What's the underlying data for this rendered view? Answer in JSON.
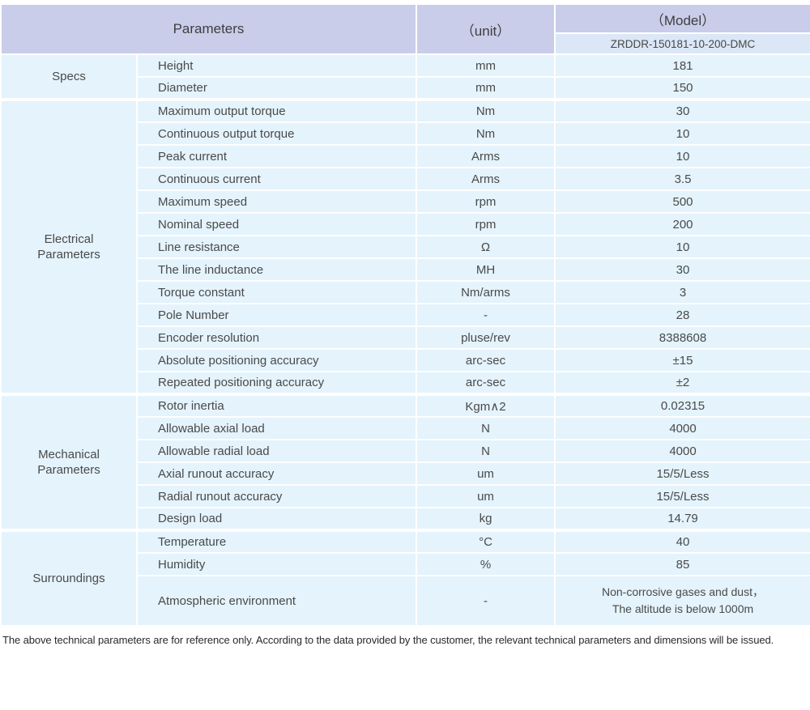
{
  "header": {
    "parameters_label": "Parameters",
    "unit_label": "（unit）",
    "model_label": "（Model）",
    "model_number": "ZRDDR-150181-10-200-DMC"
  },
  "groups": [
    {
      "label": "Specs",
      "rows": [
        {
          "param": "Height",
          "unit": "mm",
          "value": "181"
        },
        {
          "param": "Diameter",
          "unit": "mm",
          "value": "150"
        }
      ]
    },
    {
      "label": "Electrical Parameters",
      "rows": [
        {
          "param": "Maximum output torque",
          "unit": "Nm",
          "value": "30"
        },
        {
          "param": "Continuous output torque",
          "unit": "Nm",
          "value": "10"
        },
        {
          "param": "Peak current",
          "unit": "Arms",
          "value": "10"
        },
        {
          "param": "Continuous current",
          "unit": "Arms",
          "value": "3.5"
        },
        {
          "param": "Maximum speed",
          "unit": "rpm",
          "value": "500"
        },
        {
          "param": "Nominal speed",
          "unit": "rpm",
          "value": "200"
        },
        {
          "param": "Line resistance",
          "unit": "Ω",
          "value": "10"
        },
        {
          "param": "The line inductance",
          "unit": "MH",
          "value": "30"
        },
        {
          "param": "Torque constant",
          "unit": "Nm/arms",
          "value": "3"
        },
        {
          "param": "Pole Number",
          "unit": "-",
          "value": "28"
        },
        {
          "param": "Encoder resolution",
          "unit": "pluse/rev",
          "value": "8388608"
        },
        {
          "param": "Absolute positioning accuracy",
          "unit": "arc-sec",
          "value": "±15"
        },
        {
          "param": "Repeated positioning accuracy",
          "unit": "arc-sec",
          "value": "±2"
        }
      ]
    },
    {
      "label": "Mechanical Parameters",
      "rows": [
        {
          "param": "Rotor inertia",
          "unit": "Kgm∧2",
          "value": "0.02315"
        },
        {
          "param": "Allowable axial load",
          "unit": "N",
          "value": "4000"
        },
        {
          "param": "Allowable radial load",
          "unit": "N",
          "value": "4000"
        },
        {
          "param": "Axial runout accuracy",
          "unit": "um",
          "value": "15/5/Less"
        },
        {
          "param": "Radial runout accuracy",
          "unit": "um",
          "value": "15/5/Less"
        },
        {
          "param": "Design load",
          "unit": "kg",
          "value": "14.79"
        }
      ]
    },
    {
      "label": "Surroundings",
      "rows": [
        {
          "param": "Temperature",
          "unit": "°C",
          "value": "40"
        },
        {
          "param": "Humidity",
          "unit": "%",
          "value": "85"
        },
        {
          "param": "Atmospheric environment",
          "unit": "-",
          "value": "Non-corrosive gases and dust，\nThe altitude is below 1000m"
        }
      ]
    }
  ],
  "footnote": "The above technical parameters are for reference only. According to the data provided by the customer, the relevant technical parameters and dimensions will be issued."
}
